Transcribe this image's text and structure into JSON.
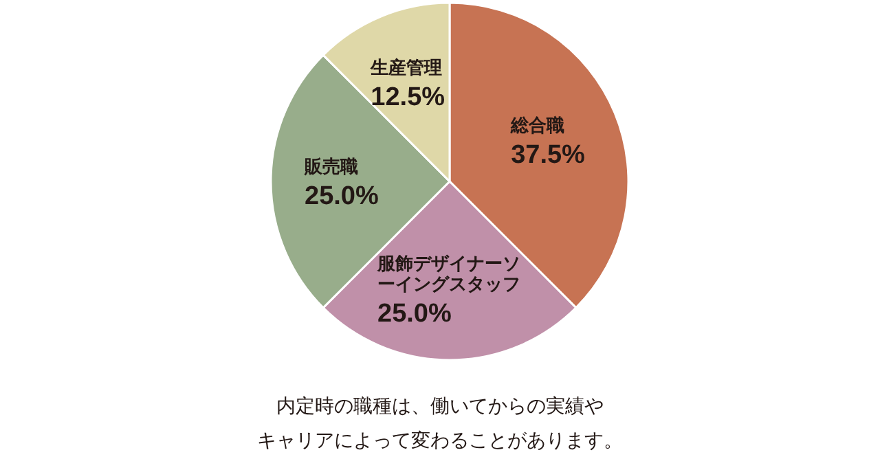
{
  "chart_data": {
    "type": "pie",
    "categories": [
      "総合職",
      "服飾デザイナーソーイングスタッフ",
      "販売職",
      "生産管理"
    ],
    "values": [
      37.5,
      25.0,
      25.0,
      12.5
    ],
    "colors": [
      "#c77353",
      "#c090a9",
      "#98ad8b",
      "#dfd8a8"
    ],
    "value_labels": [
      "37.5%",
      "25.0%",
      "25.0%",
      "12.5%"
    ],
    "annotations": [
      "内定時の職種は、働いてからの実績や",
      "キャリアによって変わることがあります。"
    ]
  }
}
